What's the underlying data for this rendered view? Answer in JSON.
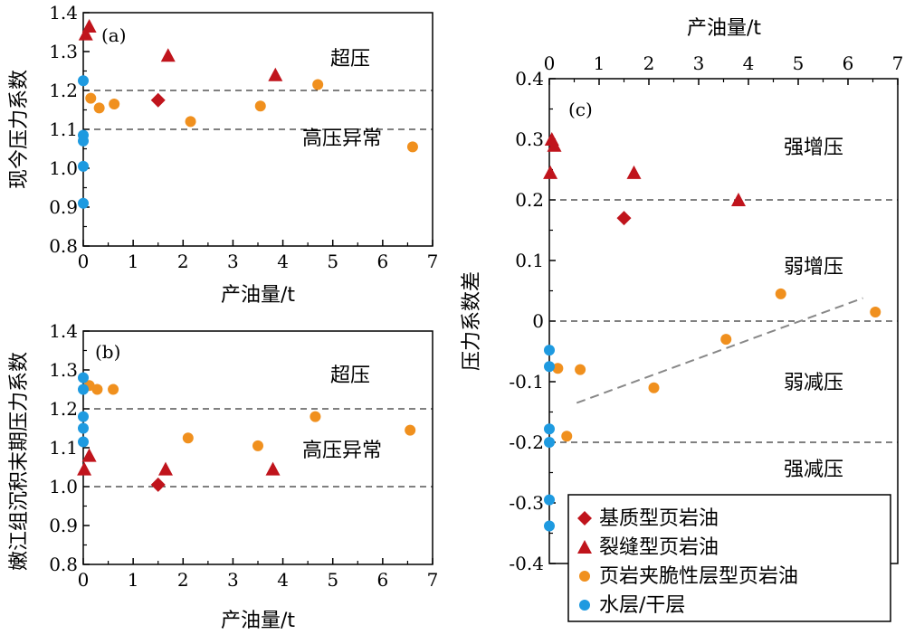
{
  "colors": {
    "matrix": "#c0141c",
    "fracture": "#c0141c",
    "interlayer": "#f0901e",
    "water": "#1e9ae0",
    "trend": "#888888"
  },
  "chart_data": [
    {
      "id": "a",
      "type": "scatter",
      "panel_label": "(a)",
      "xlabel": "产油量/t",
      "ylabel": "现今压力系数",
      "xlim": [
        0,
        7
      ],
      "ylim": [
        0.8,
        1.4
      ],
      "xticks": [
        "0",
        "1",
        "2",
        "3",
        "4",
        "5",
        "6",
        "7"
      ],
      "yticks": [
        "0.8",
        "0.9",
        "1.0",
        "1.1",
        "1.2",
        "1.3",
        "1.4"
      ],
      "ref_lines": [
        1.1,
        1.2
      ],
      "zone_labels": [
        "超压",
        "高压异常"
      ],
      "series": [
        {
          "key": "matrix",
          "marker": "diamond",
          "points": [
            [
              1.5,
              1.175
            ]
          ]
        },
        {
          "key": "fracture",
          "marker": "triangle",
          "points": [
            [
              0.05,
              1.345
            ],
            [
              0.12,
              1.365
            ],
            [
              1.7,
              1.29
            ],
            [
              3.85,
              1.24
            ]
          ]
        },
        {
          "key": "interlayer",
          "marker": "circle",
          "points": [
            [
              0.15,
              1.18
            ],
            [
              0.32,
              1.155
            ],
            [
              0.62,
              1.165
            ],
            [
              2.15,
              1.12
            ],
            [
              3.55,
              1.16
            ],
            [
              4.7,
              1.215
            ],
            [
              6.6,
              1.055
            ]
          ]
        },
        {
          "key": "water",
          "marker": "circle",
          "points": [
            [
              0.0,
              1.225
            ],
            [
              0.0,
              1.005
            ],
            [
              0.0,
              1.085
            ],
            [
              0.0,
              1.07
            ],
            [
              0.0,
              0.91
            ]
          ]
        }
      ]
    },
    {
      "id": "b",
      "type": "scatter",
      "panel_label": "(b)",
      "xlabel": "产油量/t",
      "ylabel": "嫩江组沉积末期压力系数",
      "xlim": [
        0,
        7
      ],
      "ylim": [
        0.8,
        1.4
      ],
      "xticks": [
        "0",
        "1",
        "2",
        "3",
        "4",
        "5",
        "6",
        "7"
      ],
      "yticks": [
        "0.8",
        "0.9",
        "1.0",
        "1.1",
        "1.2",
        "1.3",
        "1.4"
      ],
      "ref_lines": [
        1.0,
        1.2
      ],
      "zone_labels": [
        "超压",
        "高压异常"
      ],
      "series": [
        {
          "key": "matrix",
          "marker": "diamond",
          "points": [
            [
              1.5,
              1.005
            ]
          ]
        },
        {
          "key": "fracture",
          "marker": "triangle",
          "points": [
            [
              0.02,
              1.045
            ],
            [
              0.12,
              1.08
            ],
            [
              1.65,
              1.045
            ],
            [
              3.8,
              1.045
            ]
          ]
        },
        {
          "key": "interlayer",
          "marker": "circle",
          "points": [
            [
              0.12,
              1.26
            ],
            [
              0.28,
              1.25
            ],
            [
              0.6,
              1.25
            ],
            [
              2.1,
              1.125
            ],
            [
              3.5,
              1.105
            ],
            [
              4.65,
              1.18
            ],
            [
              6.55,
              1.145
            ]
          ]
        },
        {
          "key": "water",
          "marker": "circle",
          "points": [
            [
              0.0,
              1.28
            ],
            [
              0.0,
              1.25
            ],
            [
              0.0,
              1.18
            ],
            [
              0.0,
              1.15
            ],
            [
              0.0,
              1.115
            ]
          ]
        }
      ]
    },
    {
      "id": "c",
      "type": "scatter",
      "panel_label": "(c)",
      "xlabel": "产油量/t",
      "ylabel": "压力系数差",
      "xlim": [
        0,
        7
      ],
      "ylim": [
        -0.4,
        0.4
      ],
      "xticks": [
        "0",
        "1",
        "2",
        "3",
        "4",
        "5",
        "6",
        "7"
      ],
      "yticks": [
        "0.4",
        "0.3",
        "0.2",
        "0.1",
        "0",
        "-0.1",
        "-0.2",
        "-0.3",
        "-0.4"
      ],
      "ref_lines": [
        0.2,
        0.0,
        -0.2
      ],
      "zone_labels": [
        "强增压",
        "弱增压",
        "弱减压",
        "强减压"
      ],
      "trend_line": [
        [
          0.55,
          -0.135
        ],
        [
          6.3,
          0.038
        ]
      ],
      "series": [
        {
          "key": "matrix",
          "marker": "diamond",
          "points": [
            [
              1.5,
              0.17
            ]
          ]
        },
        {
          "key": "fracture",
          "marker": "triangle",
          "points": [
            [
              0.02,
              0.245
            ],
            [
              0.05,
              0.3
            ],
            [
              0.1,
              0.29
            ],
            [
              1.7,
              0.245
            ],
            [
              3.8,
              0.2
            ]
          ]
        },
        {
          "key": "interlayer",
          "marker": "circle",
          "points": [
            [
              0.17,
              -0.078
            ],
            [
              0.35,
              -0.19
            ],
            [
              0.62,
              -0.08
            ],
            [
              2.1,
              -0.11
            ],
            [
              3.55,
              -0.03
            ],
            [
              4.65,
              0.045
            ],
            [
              6.55,
              0.015
            ]
          ]
        },
        {
          "key": "water",
          "marker": "circle",
          "points": [
            [
              0.0,
              -0.048
            ],
            [
              0.0,
              -0.075
            ],
            [
              0.0,
              -0.178
            ],
            [
              0.0,
              -0.2
            ],
            [
              0.0,
              -0.295
            ],
            [
              0.0,
              -0.338
            ]
          ]
        }
      ]
    }
  ],
  "legend": {
    "items": [
      {
        "key": "matrix",
        "marker": "diamond",
        "label": "基质型页岩油"
      },
      {
        "key": "fracture",
        "marker": "triangle",
        "label": "裂缝型页岩油"
      },
      {
        "key": "interlayer",
        "marker": "circle",
        "label": "页岩夹脆性层型页岩油"
      },
      {
        "key": "water",
        "marker": "circle",
        "label": "水层/干层"
      }
    ]
  }
}
